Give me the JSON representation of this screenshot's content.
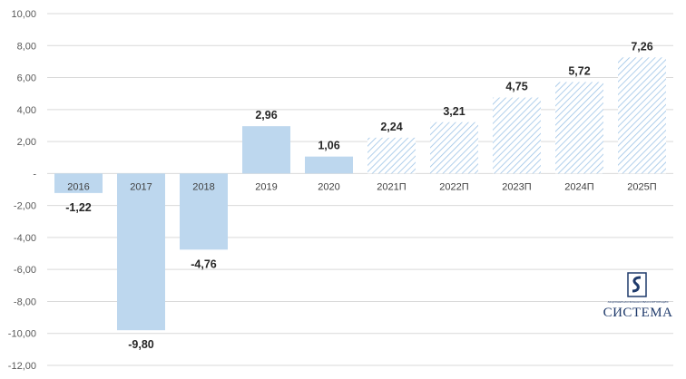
{
  "chart_data": {
    "type": "bar",
    "categories": [
      "2016",
      "2017",
      "2018",
      "2019",
      "2020",
      "2021П",
      "2022П",
      "2023П",
      "2024П",
      "2025П"
    ],
    "values": [
      -1.22,
      -9.8,
      -4.76,
      2.96,
      1.06,
      2.24,
      3.21,
      4.75,
      5.72,
      7.26
    ],
    "value_labels": [
      "-1,22",
      "-9,80",
      "-4,76",
      "2,96",
      "1,06",
      "2,24",
      "3,21",
      "4,75",
      "5,72",
      "7,26"
    ],
    "forecast": [
      false,
      false,
      false,
      false,
      false,
      true,
      true,
      true,
      true,
      true
    ],
    "ylim": [
      -12,
      10
    ],
    "yticks": [
      10,
      8,
      6,
      4,
      2,
      0,
      -2,
      -4,
      -6,
      -8,
      -10,
      -12
    ],
    "ytick_labels": [
      "10,00",
      "8,00",
      "6,00",
      "4,00",
      "2,00",
      "-",
      "-2,00",
      "-4,00",
      "-6,00",
      "-8,00",
      "-10,00",
      "-12,00"
    ],
    "grid": true,
    "colors": {
      "bar": "#bdd7ee",
      "hatch": "#9dc3e6",
      "grid": "#d9d9d9"
    }
  },
  "logo": {
    "small_text": "АКЦИОНЕРНАЯ ФИНАНСОВАЯ КОРПОРАЦИЯ",
    "name": "СИСТЕМА",
    "icon": "sistema-logo-icon"
  }
}
